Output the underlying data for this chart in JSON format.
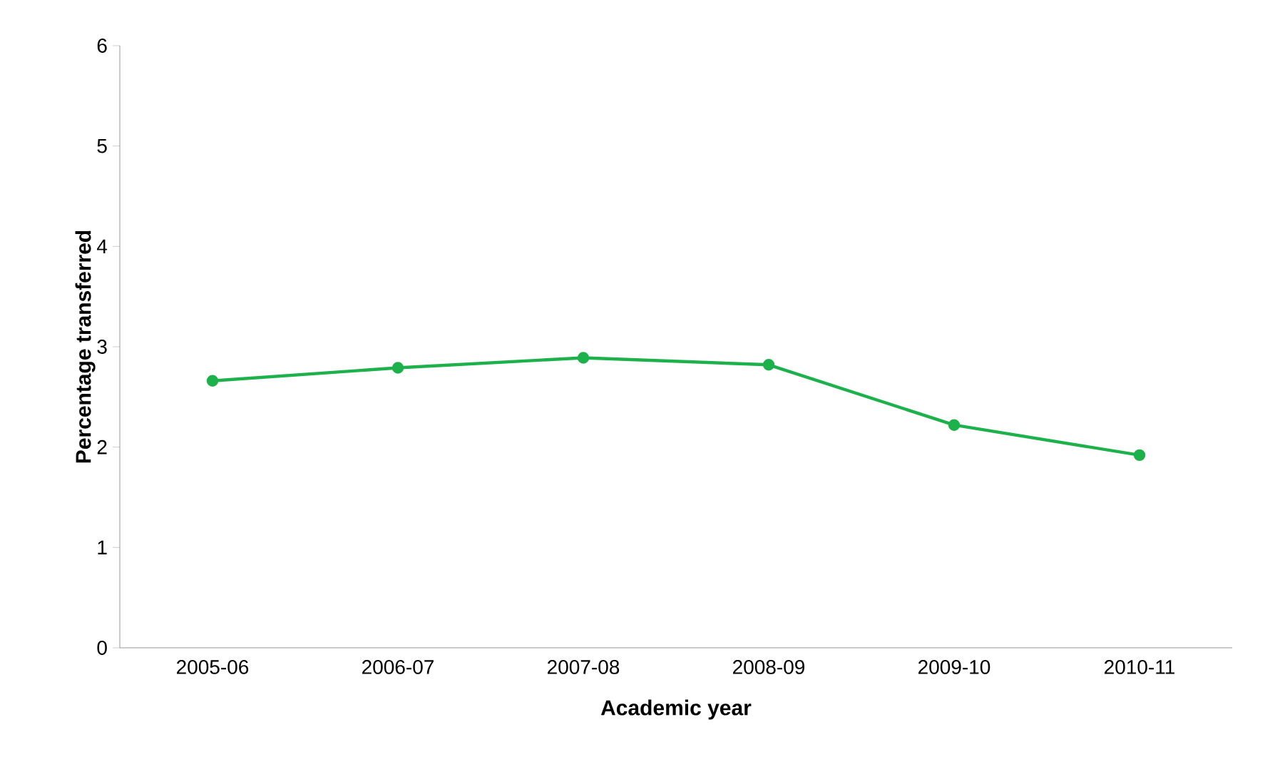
{
  "chart_data": {
    "type": "line",
    "xlabel": "Academic year",
    "ylabel": "Percentage transferred",
    "categories": [
      "2005-06",
      "2006-07",
      "2007-08",
      "2008-09",
      "2009-10",
      "2010-11"
    ],
    "series": [
      {
        "color": "#1db14b",
        "values": [
          2.66,
          2.79,
          2.89,
          2.82,
          2.22,
          1.92
        ]
      }
    ],
    "ylim": [
      0,
      6
    ],
    "yticks": [
      0,
      1,
      2,
      3,
      4,
      5,
      6
    ],
    "grid": false,
    "marker": "circle",
    "line_style": "solid"
  }
}
